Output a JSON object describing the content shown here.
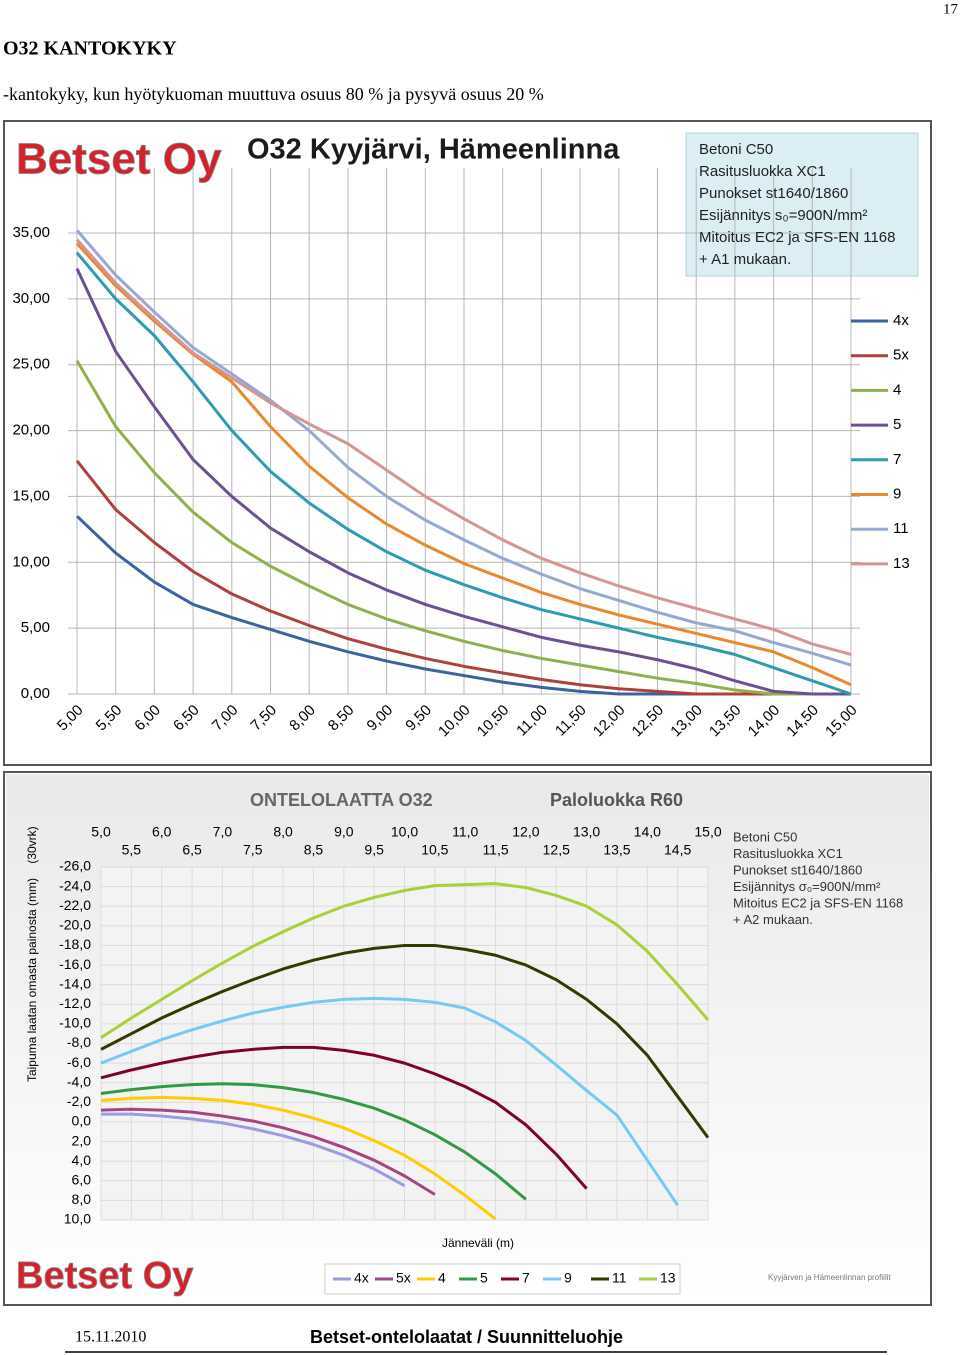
{
  "page_number": "17",
  "heading": "O32 KANTOKYKY",
  "subtitle": "-kantokyky, kun hyötykuoman muuttuva osuus 80 % ja pysyvä osuus 20 %",
  "footer": {
    "date": "15.11.2010",
    "title": "Betset-ontelolaatat / Suunnitteluohje"
  },
  "chart_data": [
    {
      "type": "line",
      "title": "O32 Kyyjärvi, Hämeenlinna",
      "logo": "Betset Oy",
      "info": [
        "Betoni C50",
        "Rasitusluokka XC1",
        "Punokset st1640/1860",
        "Esijännitys s₀=900N/mm²",
        "Mitoitus EC2 ja SFS-EN 1168",
        "+ A1 mukaan."
      ],
      "x": [
        5,
        5.5,
        6,
        6.5,
        7,
        7.5,
        8,
        8.5,
        9,
        9.5,
        10,
        10.5,
        11,
        11.5,
        12,
        12.5,
        13,
        13.5,
        14,
        14.5,
        15
      ],
      "xlim": [
        5,
        15
      ],
      "ylim": [
        0,
        35
      ],
      "grid": true,
      "legend": "right",
      "xticks": [
        {
          "value": 5,
          "label": "5,00"
        },
        {
          "value": 5.5,
          "label": "5,50"
        },
        {
          "value": 6,
          "label": "6,00"
        },
        {
          "value": 6.5,
          "label": "6,50"
        },
        {
          "value": 7,
          "label": "7,00"
        },
        {
          "value": 7.5,
          "label": "7,50"
        },
        {
          "value": 8,
          "label": "8,00"
        },
        {
          "value": 8.5,
          "label": "8,50"
        },
        {
          "value": 9,
          "label": "9,00"
        },
        {
          "value": 9.5,
          "label": "9,50"
        },
        {
          "value": 10,
          "label": "10,00"
        },
        {
          "value": 10.5,
          "label": "10,50"
        },
        {
          "value": 11,
          "label": "11,00"
        },
        {
          "value": 11.5,
          "label": "11,50"
        },
        {
          "value": 12,
          "label": "12,00"
        },
        {
          "value": 12.5,
          "label": "12,50"
        },
        {
          "value": 13,
          "label": "13,00"
        },
        {
          "value": 13.5,
          "label": "13,50"
        },
        {
          "value": 14,
          "label": "14,00"
        },
        {
          "value": 14.5,
          "label": "14,50"
        },
        {
          "value": 15,
          "label": "15,00"
        }
      ],
      "yticks": [
        {
          "value": 0,
          "label": "0,00"
        },
        {
          "value": 5,
          "label": "5,00"
        },
        {
          "value": 10,
          "label": "10,00"
        },
        {
          "value": 15,
          "label": "15,00"
        },
        {
          "value": 20,
          "label": "20,00"
        },
        {
          "value": 25,
          "label": "25,00"
        },
        {
          "value": 30,
          "label": "30,00"
        },
        {
          "value": 35,
          "label": "35,00"
        }
      ],
      "series": [
        {
          "name": "4x",
          "color": "#3a64a0",
          "values": [
            13.5,
            10.7,
            8.5,
            6.8,
            5.8,
            4.9,
            4.0,
            3.2,
            2.5,
            1.9,
            1.4,
            0.9,
            0.5,
            0.2,
            0,
            0,
            0,
            0,
            0,
            0,
            0
          ]
        },
        {
          "name": "5x",
          "color": "#b0403c",
          "values": [
            17.7,
            14.0,
            11.5,
            9.3,
            7.6,
            6.3,
            5.2,
            4.2,
            3.4,
            2.7,
            2.1,
            1.6,
            1.1,
            0.7,
            0.4,
            0.2,
            0,
            0,
            0,
            0,
            0
          ]
        },
        {
          "name": "4",
          "color": "#8fb04a",
          "values": [
            25.3,
            20.3,
            16.8,
            13.8,
            11.5,
            9.7,
            8.2,
            6.8,
            5.7,
            4.8,
            4.0,
            3.3,
            2.7,
            2.2,
            1.7,
            1.2,
            0.8,
            0.3,
            0,
            0,
            0
          ]
        },
        {
          "name": "5",
          "color": "#6d4f93",
          "values": [
            32.3,
            26.0,
            21.8,
            17.8,
            15.0,
            12.6,
            10.8,
            9.2,
            7.9,
            6.8,
            5.9,
            5.1,
            4.3,
            3.7,
            3.2,
            2.6,
            1.9,
            1.0,
            0.2,
            0,
            0
          ]
        },
        {
          "name": "7",
          "color": "#2f9bb0",
          "values": [
            33.5,
            30.0,
            27.2,
            23.7,
            20.0,
            16.9,
            14.5,
            12.5,
            10.8,
            9.4,
            8.3,
            7.3,
            6.4,
            5.7,
            5.0,
            4.3,
            3.7,
            3.0,
            2.0,
            1.0,
            0
          ]
        },
        {
          "name": "9",
          "color": "#e8892e",
          "values": [
            34.2,
            31.0,
            28.3,
            25.8,
            23.7,
            20.3,
            17.3,
            14.9,
            12.9,
            11.3,
            9.9,
            8.8,
            7.7,
            6.8,
            6.0,
            5.3,
            4.6,
            3.9,
            3.2,
            2.0,
            0.7
          ]
        },
        {
          "name": "11",
          "color": "#94aad3",
          "values": [
            35.2,
            31.8,
            29.0,
            26.3,
            24.3,
            22.3,
            20.0,
            17.2,
            15.0,
            13.2,
            11.7,
            10.3,
            9.1,
            8.0,
            7.1,
            6.2,
            5.4,
            4.8,
            3.9,
            3.1,
            2.2
          ]
        },
        {
          "name": "13",
          "color": "#d69593",
          "values": [
            34.5,
            31.2,
            28.5,
            25.9,
            24.0,
            22.1,
            20.5,
            19.0,
            17.0,
            15.0,
            13.3,
            11.7,
            10.3,
            9.2,
            8.2,
            7.3,
            6.5,
            5.7,
            4.9,
            3.8,
            3.0
          ]
        }
      ]
    },
    {
      "type": "line",
      "title": "ONTELOLAATTA O32",
      "subtitle": "Paloluokka R60",
      "logo": "Betset Oy",
      "note": "Kyyjärven ja Hämeenlinnan profiilit",
      "info": [
        "Betoni C50",
        "Rasitusluokka XC1",
        "Punokset st1640/1860",
        "Esijännitys σ₀=900N/mm²",
        "Mitoitus EC2 ja SFS-EN 1168",
        "+ A2 mukaan."
      ],
      "y_label": "Taipuma laatan omasta painosta (mm)",
      "y_label_note": "(30vrk)",
      "x_label": "Jänneväli (m)",
      "x": [
        5,
        5.5,
        6,
        6.5,
        7,
        7.5,
        8,
        8.5,
        9,
        9.5,
        10,
        10.5,
        11,
        11.5,
        12,
        12.5,
        13,
        13.5,
        14,
        14.5,
        15
      ],
      "xlim": [
        5,
        15
      ],
      "ylim": [
        -26,
        10
      ],
      "y_inverted": true,
      "grid": true,
      "legend": "bottom",
      "xticks": [
        {
          "value": 5,
          "label": "5,0"
        },
        {
          "value": 5.5,
          "label": "5,5"
        },
        {
          "value": 6,
          "label": "6,0"
        },
        {
          "value": 6.5,
          "label": "6,5"
        },
        {
          "value": 7,
          "label": "7,0"
        },
        {
          "value": 7.5,
          "label": "7,5"
        },
        {
          "value": 8,
          "label": "8,0"
        },
        {
          "value": 8.5,
          "label": "8,5"
        },
        {
          "value": 9,
          "label": "9,0"
        },
        {
          "value": 9.5,
          "label": "9,5"
        },
        {
          "value": 10,
          "label": "10,0"
        },
        {
          "value": 10.5,
          "label": "10,5"
        },
        {
          "value": 11,
          "label": "11,0"
        },
        {
          "value": 11.5,
          "label": "11,5"
        },
        {
          "value": 12,
          "label": "12,0"
        },
        {
          "value": 12.5,
          "label": "12,5"
        },
        {
          "value": 13,
          "label": "13,0"
        },
        {
          "value": 13.5,
          "label": "13,5"
        },
        {
          "value": 14,
          "label": "14,0"
        },
        {
          "value": 14.5,
          "label": "14,5"
        },
        {
          "value": 15,
          "label": "15,0"
        }
      ],
      "yticks": [
        {
          "value": -26,
          "label": "-26,0"
        },
        {
          "value": -24,
          "label": "-24,0"
        },
        {
          "value": -22,
          "label": "-22,0"
        },
        {
          "value": -20,
          "label": "-20,0"
        },
        {
          "value": -18,
          "label": "-18,0"
        },
        {
          "value": -16,
          "label": "-16,0"
        },
        {
          "value": -14,
          "label": "-14,0"
        },
        {
          "value": -12,
          "label": "-12,0"
        },
        {
          "value": -10,
          "label": "-10,0"
        },
        {
          "value": -8,
          "label": "-8,0"
        },
        {
          "value": -6,
          "label": "-6,0"
        },
        {
          "value": -4,
          "label": "-4,0"
        },
        {
          "value": -2,
          "label": "-2,0"
        },
        {
          "value": 0,
          "label": "0,0"
        },
        {
          "value": 2,
          "label": "2,0"
        },
        {
          "value": 4,
          "label": "4,0"
        },
        {
          "value": 6,
          "label": "6,0"
        },
        {
          "value": 8,
          "label": "8,0"
        },
        {
          "value": 10,
          "label": "10,0"
        }
      ],
      "series": [
        {
          "name": "4x",
          "color": "#9b9be0",
          "values": [
            -0.8,
            -0.8,
            -0.6,
            -0.3,
            0.1,
            0.7,
            1.4,
            2.3,
            3.4,
            4.8,
            6.5,
            null,
            null,
            null,
            null,
            null,
            null,
            null,
            null,
            null,
            null
          ]
        },
        {
          "name": "5x",
          "color": "#a64584",
          "values": [
            -1.2,
            -1.3,
            -1.2,
            -1.0,
            -0.6,
            -0.1,
            0.6,
            1.5,
            2.6,
            3.9,
            5.5,
            7.4,
            null,
            null,
            null,
            null,
            null,
            null,
            null,
            null,
            null
          ]
        },
        {
          "name": "4",
          "color": "#ffcc00",
          "values": [
            -2.2,
            -2.4,
            -2.5,
            -2.4,
            -2.2,
            -1.8,
            -1.2,
            -0.4,
            0.6,
            1.9,
            3.4,
            5.3,
            7.5,
            9.9,
            null,
            null,
            null,
            null,
            null,
            null,
            null
          ]
        },
        {
          "name": "5",
          "color": "#339944",
          "values": [
            -2.9,
            -3.3,
            -3.6,
            -3.8,
            -3.9,
            -3.8,
            -3.5,
            -3.0,
            -2.3,
            -1.4,
            -0.2,
            1.3,
            3.1,
            5.3,
            7.9,
            null,
            null,
            null,
            null,
            null,
            null
          ]
        },
        {
          "name": "7",
          "color": "#800030",
          "values": [
            -4.5,
            -5.3,
            -6.0,
            -6.6,
            -7.1,
            -7.4,
            -7.6,
            -7.6,
            -7.3,
            -6.8,
            -6.0,
            -4.9,
            -3.6,
            -2.0,
            0.3,
            3.3,
            6.8,
            null,
            null,
            null,
            null
          ]
        },
        {
          "name": "9",
          "color": "#77c8f2",
          "values": [
            -6.0,
            -7.2,
            -8.4,
            -9.4,
            -10.3,
            -11.1,
            -11.7,
            -12.2,
            -12.5,
            -12.6,
            -12.5,
            -12.2,
            -11.6,
            -10.2,
            -8.3,
            -5.8,
            -3.2,
            -0.7,
            3.9,
            8.5,
            null
          ]
        },
        {
          "name": "11",
          "color": "#333a00",
          "values": [
            -7.4,
            -9.0,
            -10.6,
            -12.0,
            -13.3,
            -14.5,
            -15.6,
            -16.5,
            -17.2,
            -17.7,
            -18.0,
            -18.0,
            -17.6,
            -17.0,
            -16.0,
            -14.5,
            -12.5,
            -10.0,
            -6.8,
            -2.6,
            1.6
          ]
        },
        {
          "name": "13",
          "color": "#a8d03a",
          "values": [
            -8.6,
            -10.6,
            -12.5,
            -14.4,
            -16.2,
            -17.9,
            -19.4,
            -20.8,
            -22.0,
            -22.9,
            -23.6,
            -24.1,
            -24.2,
            -24.3,
            -23.9,
            -23.1,
            -22.0,
            -20.1,
            -17.4,
            -14.0,
            -10.4
          ]
        }
      ]
    }
  ]
}
